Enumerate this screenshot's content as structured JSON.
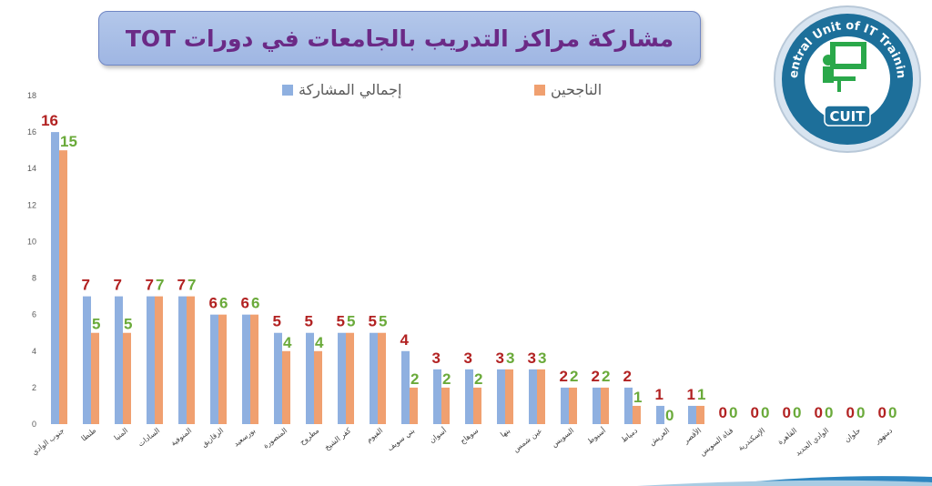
{
  "chart_data": {
    "type": "bar",
    "title": "مشاركة مراكز التدريب بالجامعات في دورات TOT",
    "xlabel": "",
    "ylabel": "",
    "ylim": [
      0,
      18
    ],
    "yticks": [
      0,
      2,
      4,
      6,
      8,
      10,
      12,
      14,
      16,
      18
    ],
    "grid": false,
    "legend_position": "top",
    "categories": [
      "جنوب الوادي",
      "طنطا",
      "المنيا",
      "السادات",
      "المنوفية",
      "الزقازيق",
      "بورسعيد",
      "المنصورة",
      "مطروح",
      "كفر الشيخ",
      "الفيوم",
      "بني سويف",
      "أسوان",
      "سوهاج",
      "بنها",
      "عين شمس",
      "السويس",
      "أسيوط",
      "دمياط",
      "العريش",
      "الأقصر",
      "قناة السويس",
      "الإسكندرية",
      "القاهرة",
      "الوادي الجديد",
      "حلوان",
      "دمنهور"
    ],
    "series": [
      {
        "name": "إجمالي المشاركة",
        "color": "#8fb0e0",
        "label_color": "#b22222",
        "values": [
          16,
          7,
          7,
          7,
          7,
          6,
          6,
          5,
          5,
          5,
          5,
          4,
          3,
          3,
          3,
          3,
          2,
          2,
          2,
          1,
          1,
          0,
          0,
          0,
          0,
          0,
          0
        ]
      },
      {
        "name": "الناجحين",
        "color": "#f0a070",
        "label_color": "#6aaa3a",
        "values": [
          15,
          5,
          5,
          7,
          7,
          6,
          6,
          4,
          4,
          5,
          5,
          2,
          2,
          2,
          3,
          3,
          2,
          2,
          1,
          0,
          1,
          0,
          0,
          0,
          0,
          0,
          0
        ]
      }
    ]
  },
  "logo": {
    "ring_text": "Central Unit of IT Training",
    "badge_text": "CUIT"
  }
}
